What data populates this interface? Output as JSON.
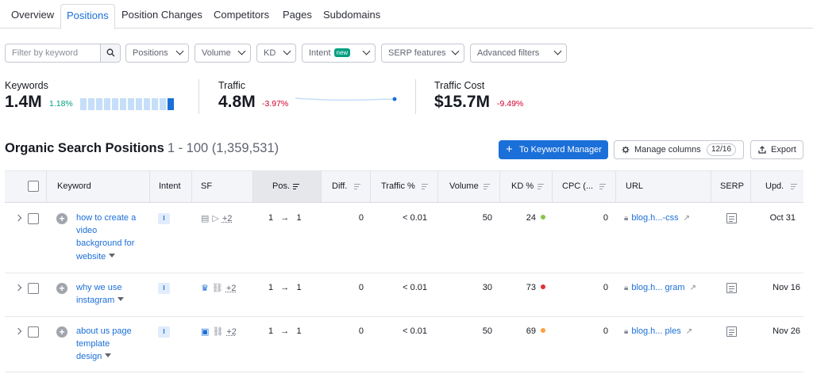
{
  "tabs": [
    "Overview",
    "Positions",
    "Position Changes",
    "Competitors",
    "Pages",
    "Subdomains"
  ],
  "active_tab": "Positions",
  "filters": {
    "keyword_placeholder": "Filter by keyword",
    "positions": "Positions",
    "volume": "Volume",
    "kd": "KD",
    "intent": "Intent",
    "intent_badge": "new",
    "serp_features": "SERP features",
    "advanced": "Advanced filters"
  },
  "summary": {
    "keywords": {
      "label": "Keywords",
      "value": "1.4M",
      "delta": "1.18%"
    },
    "traffic": {
      "label": "Traffic",
      "value": "4.8M",
      "delta": "-3.97%"
    },
    "traffic_cost": {
      "label": "Traffic Cost",
      "value": "$15.7M",
      "delta": "-9.49%"
    }
  },
  "section": {
    "title": "Organic Search Positions",
    "range": "1 - 100 (1,359,531)",
    "to_keyword_manager": "To Keyword Manager",
    "manage_columns": "Manage columns",
    "columns_count": "12/16",
    "export": "Export"
  },
  "columns": {
    "keyword": "Keyword",
    "intent": "Intent",
    "sf": "SF",
    "pos": "Pos.",
    "diff": "Diff.",
    "traffic": "Traffic %",
    "volume": "Volume",
    "kd": "KD %",
    "cpc": "CPC (...",
    "url": "URL",
    "serp": "SERP",
    "upd": "Upd."
  },
  "colors": {
    "accent": "#1b6fd8",
    "positive": "#009f81",
    "negative": "#d1002f",
    "kd_easy": "#8bc34a",
    "kd_hard": "#e03131",
    "kd_mid": "#ff9f43"
  },
  "rows": [
    {
      "keyword_lines": [
        "how to create a",
        "video",
        "background for",
        "website"
      ],
      "intent": "I",
      "sf_more": "+2",
      "pos_from": "1",
      "arrow": "→",
      "pos_to": "1",
      "diff": "0",
      "traffic": "< 0.01",
      "volume": "50",
      "kd": "24",
      "kd_color": "#8bc34a",
      "cpc": "0",
      "url": "blog.h...-css",
      "upd": "Oct 31"
    },
    {
      "keyword_lines": [
        "why we use",
        "instagram"
      ],
      "intent": "I",
      "sf_more": "+2",
      "pos_from": "1",
      "arrow": "→",
      "pos_to": "1",
      "diff": "0",
      "traffic": "< 0.01",
      "volume": "30",
      "kd": "73",
      "kd_color": "#e03131",
      "cpc": "0",
      "url": "blog.h... gram",
      "upd": "Nov 16"
    },
    {
      "keyword_lines": [
        "about us page",
        "template",
        "design"
      ],
      "intent": "I",
      "sf_more": "+2",
      "pos_from": "1",
      "arrow": "→",
      "pos_to": "1",
      "diff": "0",
      "traffic": "< 0.01",
      "volume": "50",
      "kd": "69",
      "kd_color": "#ff9f43",
      "cpc": "0",
      "url": "blog.h... ples",
      "upd": "Nov 26"
    }
  ]
}
